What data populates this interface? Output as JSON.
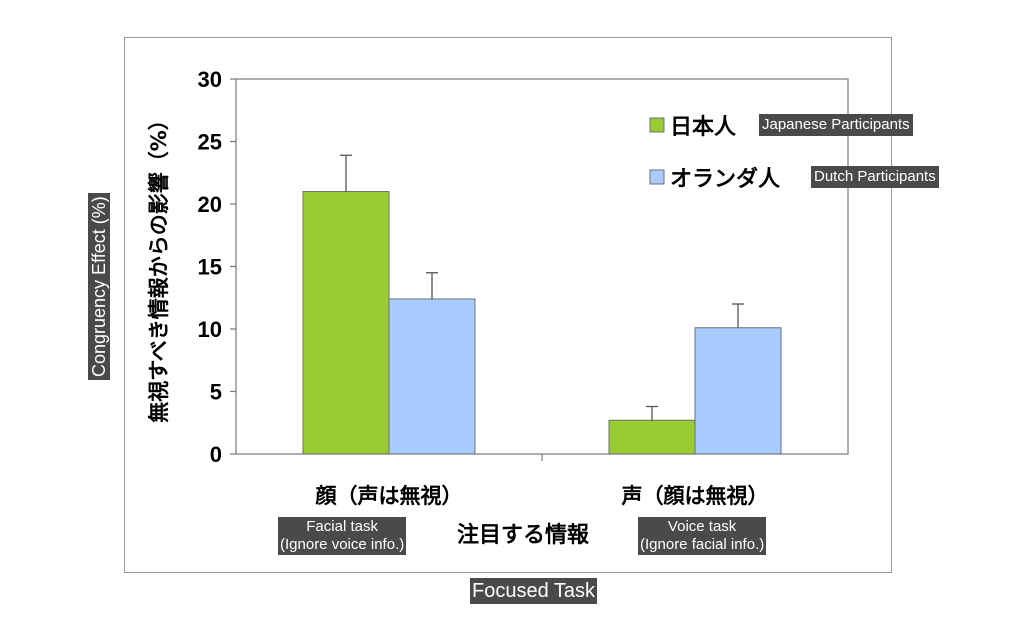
{
  "chart_data": {
    "type": "bar",
    "categories": [
      "顔（声は無視）",
      "声（顔は無視）"
    ],
    "category_translations": [
      "Facial task\n(Ignore voice info.)",
      "Voice task\n(Ignore facial info.)"
    ],
    "series": [
      {
        "name": "日本人",
        "translation": "Japanese Participants",
        "color": "#99cc33",
        "values": [
          21.0,
          2.7
        ],
        "errors": [
          2.9,
          1.1
        ]
      },
      {
        "name": "オランダ人",
        "translation": "Dutch Participants",
        "color": "#a9ccff",
        "values": [
          12.4,
          10.1
        ],
        "errors": [
          2.1,
          1.9
        ]
      }
    ],
    "ylabel": "無視すべき情報からの影響（%）",
    "ylabel_translation": "Congruency Effect (%)",
    "xlabel": "注目する情報",
    "xlabel_translation": "Focused Task",
    "ylim": [
      0,
      30
    ],
    "yticks": [
      0,
      5,
      10,
      15,
      20,
      25,
      30
    ],
    "grid": false,
    "legend_position": "top-right"
  }
}
